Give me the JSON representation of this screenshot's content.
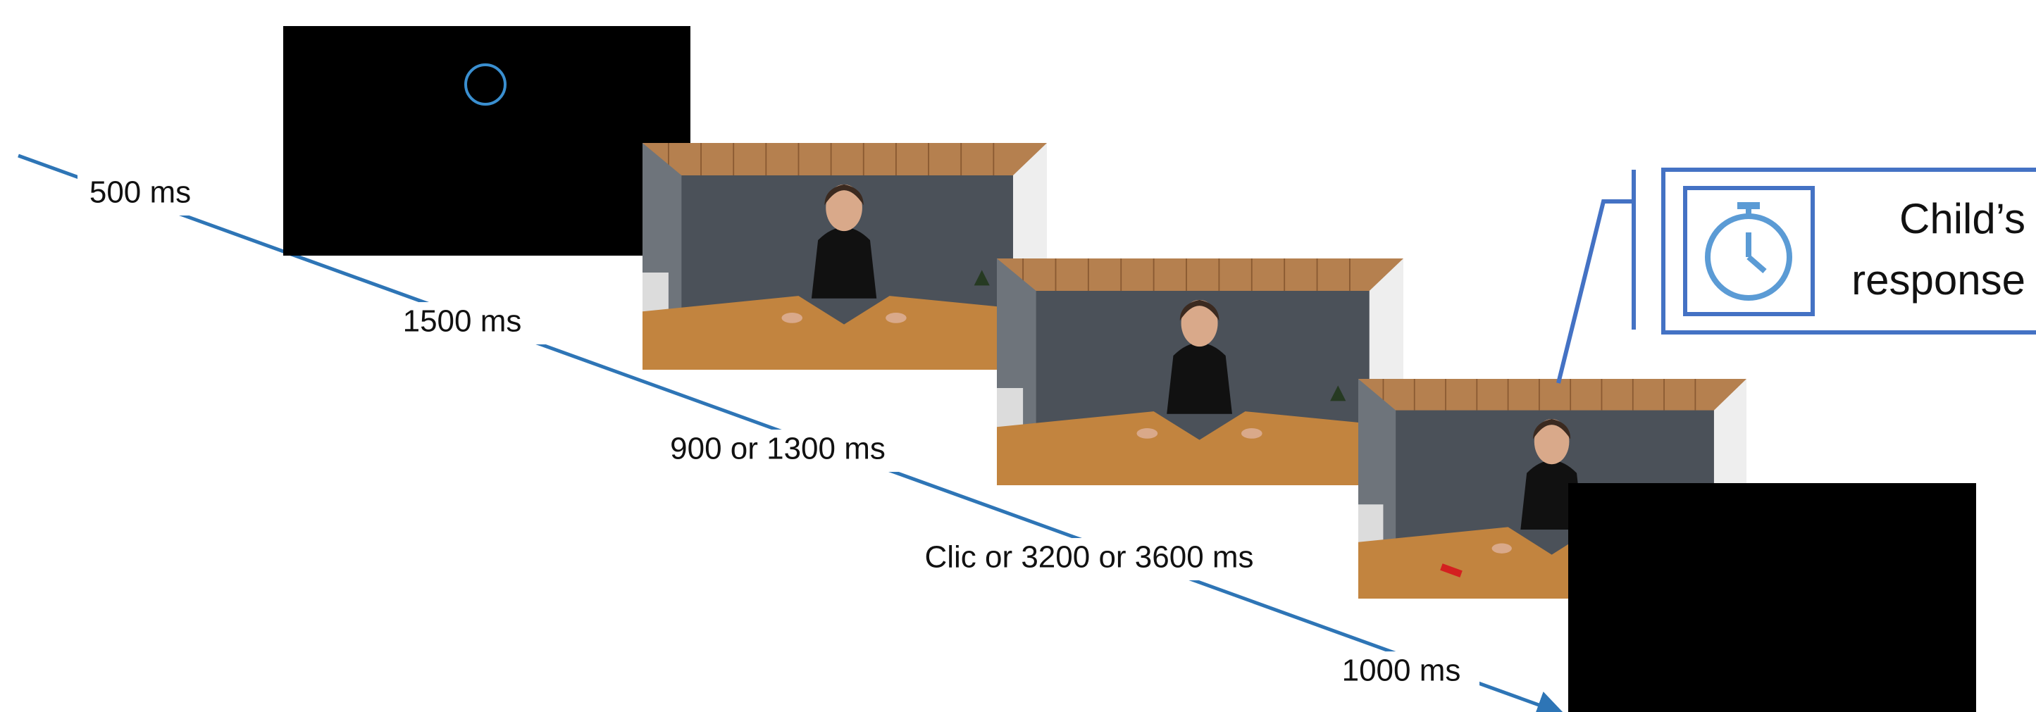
{
  "timeline": {
    "durations": [
      "500 ms",
      "1500 ms",
      "900 or 1300 ms",
      "Clic or 3200 or 3600 ms",
      "1000 ms"
    ]
  },
  "callout": {
    "lines": [
      "Child’s",
      "response"
    ]
  }
}
